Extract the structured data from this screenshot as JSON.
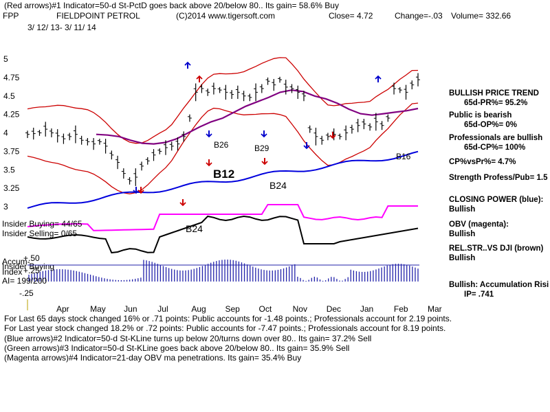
{
  "header": {
    "line1": "(Red arrows)#1 Indicator=50-d St-PctD goes back above 20/below 80.. Its gain= 58.6% Buy",
    "ticker": "FPP",
    "company": "FIELDPOINT PETROL",
    "copyright": "(C)2014 www.tigersoft.com",
    "close": "Close=  4.72",
    "change": "Change=-.03",
    "volume": "Volume= 332.66",
    "date_range": "3/ 12/ 13- 3/ 11/ 14"
  },
  "colors": {
    "price": "#000000",
    "bands": "#cc0000",
    "ma": "#800080",
    "closing_power": "#0000dd",
    "obv": "#ff00ff",
    "relstr": "#000000",
    "accum": "#2222aa",
    "buy_arrow": "#cc0000",
    "sell_arrow": "#0000cc"
  },
  "chart_data": {
    "type": "line",
    "x_ticks": [
      "Apr",
      "May",
      "Jun",
      "Jul",
      "Aug",
      "Sep",
      "Oct",
      "Nov",
      "Dec",
      "Jan",
      "Feb",
      "Mar"
    ],
    "y_ticks": [
      "5",
      "4.75",
      "4.5",
      "4.25",
      "4",
      "3.75",
      "3.5",
      "3.25",
      "3"
    ],
    "ylim": [
      3,
      5
    ],
    "price_close": [
      3.98,
      3.99,
      4.0,
      4.05,
      4.0,
      3.96,
      3.92,
      3.95,
      3.98,
      3.9,
      3.88,
      3.85,
      3.88,
      3.82,
      3.7,
      3.6,
      3.45,
      3.35,
      3.4,
      3.55,
      3.62,
      3.7,
      3.75,
      3.8,
      3.82,
      3.85,
      3.95,
      4.2,
      4.55,
      4.6,
      4.55,
      4.6,
      4.58,
      4.55,
      4.52,
      4.55,
      4.5,
      4.48,
      4.55,
      4.6,
      4.7,
      4.65,
      4.72,
      4.62,
      4.6,
      4.55,
      4.5,
      4.05,
      3.95,
      3.9,
      3.95,
      3.98,
      3.95,
      4.0,
      4.05,
      4.1,
      4.12,
      4.08,
      4.15,
      4.1,
      4.2,
      4.6,
      4.58,
      4.55,
      4.65,
      4.72
    ],
    "price_open_text": "Close= 4.72",
    "ma_values": [
      3.98,
      3.97,
      3.95,
      3.9,
      3.86,
      3.85,
      3.87,
      3.92,
      4.0,
      4.08,
      4.15,
      4.2,
      4.28,
      4.36,
      4.42,
      4.48,
      4.55,
      4.58,
      4.56,
      4.5,
      4.46,
      4.4,
      4.32,
      4.26,
      4.24,
      4.26,
      4.28,
      4.3,
      4.33
    ],
    "annotations": [
      "B26",
      "B29",
      "B12",
      "B24",
      "B24",
      "B16"
    ],
    "bottom_labels": {
      "plus50": "+.50",
      "plus25": "+.25",
      "minus25": "-.25"
    },
    "insider_buying": "Insider Buying= 44/65",
    "insider_selling": "Insider Selling= 0/65",
    "accum_label_1": "Accum-",
    "accum_label_2": "Insider Buying",
    "accum_label_3": "Index",
    "ai": "AI= 199/200"
  },
  "right_panel": {
    "trend_title": "BULLISH PRICE TREND",
    "pr": "65d-PR%= 95.2%",
    "public": "Public is bearish",
    "op": "65d-OP%= 0%",
    "pros": "Professionals are bullish",
    "cp": "65d-CP%= 100%",
    "cpvspr": "CP%vsPr%=  4.7%",
    "strength": "Strength Profess/Pub= 1.5",
    "closing_power": "CLOSING POWER (blue):",
    "closing_power_val": "Bullish",
    "obv": "OBV (magenta):",
    "obv_val": "Bullish",
    "relstr": "REL.STR..VS DJI (brown)",
    "relstr_val": "Bullish",
    "accum": "Bullish: Accumulation Risi",
    "ip": "IP=  .741"
  },
  "footer": {
    "l1": "For Last 65 days stock changed  16% or  .71 points:  Public accounts for -1.48 points.;  Professionals account for  2.19 points.",
    "l2": "For Last year stock changed  18.2% or  .72 points:  Public accounts for -7.47 points.;  Professionals account for  8.19 points.",
    "l3": "(Blue arrows)#2 Indicator=50-d St-KLine turns up below 20/turns down over 80.. Its gain= 37.2% Sell",
    "l4": "(Green arrows)#3 Indicator=50-d St-KLine goes back above 20/below 80.. Its gain= 35.9% Sell",
    "l5": "(Magenta arrows)#4 Indicator=21-day OBV ma penetrations. Its gain= 35.4% Buy"
  }
}
